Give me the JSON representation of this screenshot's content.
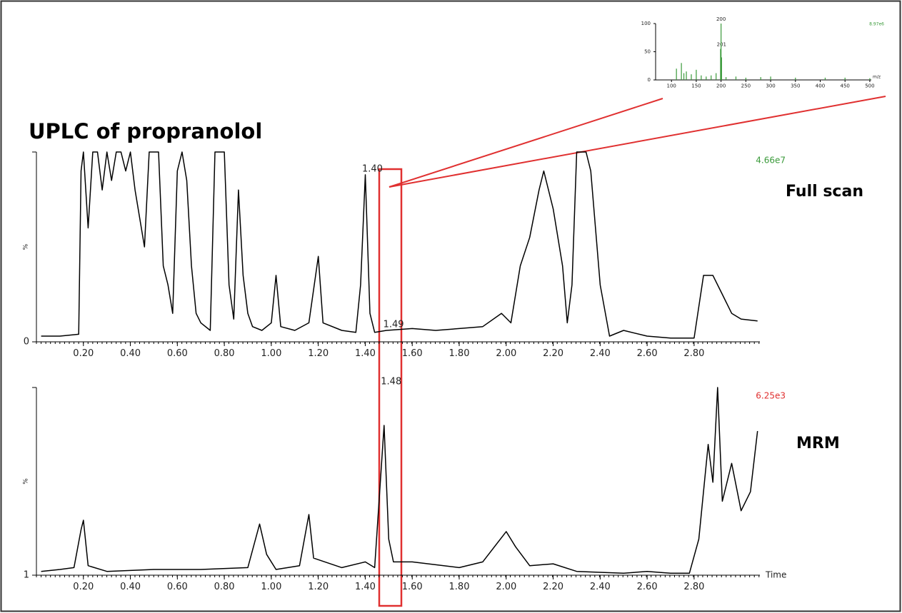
{
  "chart_data": [
    {
      "type": "stem",
      "scale_label": "8.97e6",
      "scale_color": "#3a9a3a",
      "xlabel": "m/z",
      "color": "#3a9a3a",
      "x": [
        110,
        120,
        125,
        130,
        140,
        150,
        160,
        170,
        180,
        190,
        199,
        200,
        201,
        210,
        230,
        250,
        280,
        300,
        350,
        410,
        450,
        500
      ],
      "values": [
        20,
        30,
        12,
        15,
        10,
        18,
        8,
        6,
        8,
        12,
        55,
        100,
        40,
        5,
        6,
        4,
        5,
        6,
        4,
        4,
        4,
        3
      ],
      "annotations": [
        {
          "text": "200",
          "x": 200,
          "y": 100
        },
        {
          "text": "201",
          "x": 201,
          "y": 55
        }
      ],
      "xlim": [
        68,
        503
      ],
      "ylim": [
        0,
        100
      ],
      "xticks": [
        100,
        150,
        200,
        250,
        300,
        350,
        400,
        450,
        500
      ],
      "yticks": [
        0,
        50,
        100
      ]
    },
    {
      "type": "line",
      "title": "UPLC of propranolol",
      "name": "Full scan",
      "color": "#000000",
      "scale_label": "4.66e7",
      "scale_color": "#3a9a3a",
      "ylabel": "%",
      "x": [
        0.02,
        0.1,
        0.18,
        0.19,
        0.2,
        0.22,
        0.24,
        0.26,
        0.28,
        0.3,
        0.32,
        0.34,
        0.36,
        0.38,
        0.4,
        0.42,
        0.44,
        0.46,
        0.48,
        0.52,
        0.54,
        0.56,
        0.58,
        0.6,
        0.62,
        0.64,
        0.66,
        0.68,
        0.7,
        0.74,
        0.76,
        0.8,
        0.82,
        0.84,
        0.86,
        0.88,
        0.9,
        0.92,
        0.96,
        1.0,
        1.02,
        1.04,
        1.1,
        1.16,
        1.2,
        1.22,
        1.3,
        1.36,
        1.38,
        1.4,
        1.42,
        1.44,
        1.49,
        1.6,
        1.7,
        1.8,
        1.9,
        1.98,
        2.02,
        2.06,
        2.1,
        2.14,
        2.16,
        2.2,
        2.24,
        2.26,
        2.28,
        2.3,
        2.34,
        2.36,
        2.38,
        2.4,
        2.44,
        2.5,
        2.6,
        2.7,
        2.8,
        2.84,
        2.88,
        2.92,
        2.96,
        3.0,
        3.07
      ],
      "values": [
        3,
        3,
        4,
        90,
        100,
        60,
        100,
        100,
        80,
        100,
        85,
        100,
        100,
        90,
        100,
        80,
        65,
        50,
        100,
        100,
        40,
        30,
        15,
        90,
        100,
        85,
        40,
        15,
        10,
        6,
        100,
        100,
        30,
        12,
        80,
        35,
        15,
        8,
        6,
        10,
        35,
        8,
        6,
        10,
        45,
        10,
        6,
        5,
        30,
        88,
        15,
        5,
        6,
        7,
        6,
        7,
        8,
        15,
        10,
        40,
        55,
        80,
        90,
        70,
        40,
        10,
        30,
        100,
        100,
        90,
        60,
        30,
        3,
        6,
        3,
        2,
        2,
        35,
        35,
        25,
        15,
        12,
        11
      ],
      "annotations": [
        {
          "text": "1.40",
          "x": 1.4,
          "y": 88
        },
        {
          "text": "1.49",
          "x": 1.49,
          "y": 6
        }
      ],
      "xlim": [
        0,
        3.08
      ],
      "ylim": [
        0,
        100
      ],
      "yticks": [
        0
      ],
      "xticks": [
        {
          "value": 0.2,
          "label": "0.20"
        },
        {
          "value": 0.4,
          "label": "0.40"
        },
        {
          "value": 0.6,
          "label": "0.60"
        },
        {
          "value": 0.8,
          "label": "0.80"
        },
        {
          "value": 1.0,
          "label": "1.00"
        },
        {
          "value": 1.2,
          "label": "1.20"
        },
        {
          "value": 1.4,
          "label": "1.40"
        },
        {
          "value": 1.6,
          "label": "1.60"
        },
        {
          "value": 1.8,
          "label": "1.80"
        },
        {
          "value": 2.0,
          "label": "2.00"
        },
        {
          "value": 2.2,
          "label": "2.20"
        },
        {
          "value": 2.4,
          "label": "2.40"
        },
        {
          "value": 2.6,
          "label": "2.60"
        },
        {
          "value": 2.8,
          "label": "2.80"
        }
      ]
    },
    {
      "type": "line",
      "name": "MRM",
      "color": "#000000",
      "scale_label": "6.25e3",
      "scale_color": "#e03030",
      "ylabel": "%",
      "xlabel": "Time",
      "x": [
        0.02,
        0.1,
        0.16,
        0.19,
        0.2,
        0.22,
        0.3,
        0.5,
        0.7,
        0.9,
        0.95,
        0.98,
        1.02,
        1.12,
        1.16,
        1.18,
        1.3,
        1.4,
        1.44,
        1.48,
        1.5,
        1.52,
        1.6,
        1.8,
        1.9,
        2.0,
        2.04,
        2.1,
        2.2,
        2.3,
        2.5,
        2.6,
        2.7,
        2.78,
        2.82,
        2.86,
        2.88,
        2.9,
        2.92,
        2.96,
        3.0,
        3.04,
        3.07
      ],
      "values": [
        3,
        4,
        5,
        25,
        30,
        6,
        3,
        4,
        4,
        5,
        28,
        12,
        4,
        6,
        33,
        10,
        5,
        8,
        5,
        80,
        20,
        8,
        8,
        5,
        8,
        24,
        16,
        6,
        7,
        3,
        2,
        3,
        2,
        2,
        20,
        70,
        50,
        100,
        40,
        60,
        35,
        45,
        77
      ],
      "annotations": [
        {
          "text": "1.48",
          "x": 1.48,
          "y": 100
        }
      ],
      "xlim": [
        0,
        3.08
      ],
      "ylim": [
        1,
        100
      ],
      "yticks": [
        1
      ],
      "xticks": [
        {
          "value": 0.2,
          "label": "0.20"
        },
        {
          "value": 0.4,
          "label": "0.40"
        },
        {
          "value": 0.6,
          "label": "0.60"
        },
        {
          "value": 0.8,
          "label": "0.80"
        },
        {
          "value": 1.0,
          "label": "1.00"
        },
        {
          "value": 1.2,
          "label": "1.20"
        },
        {
          "value": 1.4,
          "label": "1.40"
        },
        {
          "value": 1.6,
          "label": "1.60"
        },
        {
          "value": 1.8,
          "label": "1.80"
        },
        {
          "value": 2.0,
          "label": "2.00"
        },
        {
          "value": 2.2,
          "label": "2.20"
        },
        {
          "value": 2.4,
          "label": "2.40"
        },
        {
          "value": 2.6,
          "label": "2.60"
        },
        {
          "value": 2.8,
          "label": "2.80"
        }
      ]
    }
  ]
}
